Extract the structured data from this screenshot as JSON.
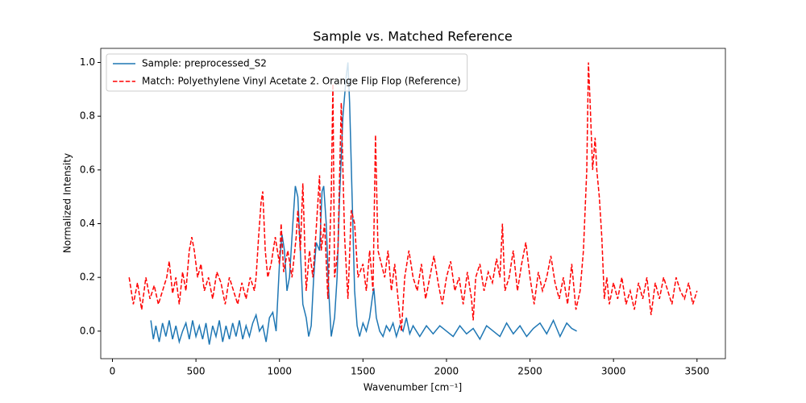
{
  "chart_data": {
    "type": "line",
    "title": "Sample vs. Matched Reference",
    "x_label": "Wavenumber [cm⁻¹]",
    "y_label": "Normalized Intensity",
    "xlim": [
      -70,
      3670
    ],
    "ylim": [
      -0.1025,
      1.0525
    ],
    "xticks": [
      0,
      500,
      1000,
      1500,
      2000,
      2500,
      3000,
      3500
    ],
    "yticks": [
      {
        "value": 0,
        "label": "0.0"
      },
      {
        "value": 0.2,
        "label": "0.2"
      },
      {
        "value": 0.4,
        "label": "0.4"
      },
      {
        "value": 0.6,
        "label": "0.6"
      },
      {
        "value": 0.8,
        "label": "0.8"
      },
      {
        "value": 1,
        "label": "1.0"
      }
    ],
    "legend": "upper left",
    "series": [
      {
        "name": "Sample: preprocessed_S2",
        "color": "#1f77b4",
        "style": "solid",
        "x": [
          230,
          245,
          260,
          280,
          300,
          320,
          340,
          360,
          380,
          400,
          420,
          440,
          460,
          480,
          500,
          520,
          540,
          560,
          580,
          600,
          620,
          640,
          660,
          680,
          700,
          720,
          740,
          760,
          780,
          800,
          820,
          840,
          860,
          880,
          900,
          920,
          940,
          960,
          980,
          1000,
          1015,
          1030,
          1045,
          1060,
          1080,
          1095,
          1110,
          1125,
          1140,
          1160,
          1175,
          1190,
          1205,
          1220,
          1240,
          1255,
          1265,
          1280,
          1295,
          1310,
          1330,
          1345,
          1360,
          1380,
          1400,
          1410,
          1420,
          1435,
          1450,
          1465,
          1480,
          1500,
          1520,
          1540,
          1555,
          1565,
          1580,
          1600,
          1620,
          1640,
          1660,
          1680,
          1700,
          1720,
          1740,
          1760,
          1780,
          1800,
          1840,
          1880,
          1920,
          1960,
          2000,
          2040,
          2080,
          2120,
          2160,
          2200,
          2240,
          2280,
          2320,
          2360,
          2400,
          2440,
          2480,
          2520,
          2560,
          2600,
          2640,
          2680,
          2720,
          2750,
          2780
        ],
        "values": [
          0.04,
          -0.03,
          0.02,
          -0.04,
          0.03,
          -0.02,
          0.04,
          -0.03,
          0.02,
          -0.04,
          0.0,
          0.03,
          -0.03,
          0.04,
          -0.02,
          0.02,
          -0.03,
          0.03,
          -0.05,
          0.02,
          -0.02,
          0.04,
          -0.04,
          0.02,
          -0.03,
          0.03,
          -0.02,
          0.04,
          -0.03,
          0.02,
          -0.02,
          0.03,
          0.06,
          0.0,
          0.02,
          -0.04,
          0.05,
          0.07,
          0.0,
          0.25,
          0.36,
          0.3,
          0.15,
          0.2,
          0.4,
          0.54,
          0.5,
          0.3,
          0.1,
          0.05,
          -0.02,
          0.02,
          0.2,
          0.33,
          0.3,
          0.52,
          0.54,
          0.4,
          0.15,
          -0.02,
          0.05,
          0.2,
          0.5,
          0.8,
          0.95,
          1.0,
          0.85,
          0.5,
          0.15,
          0.02,
          -0.02,
          0.03,
          0.0,
          0.05,
          0.12,
          0.16,
          0.05,
          0.0,
          -0.02,
          0.02,
          0.0,
          0.03,
          -0.02,
          0.02,
          0.0,
          0.05,
          -0.01,
          0.02,
          -0.02,
          0.02,
          -0.01,
          0.02,
          0.0,
          -0.02,
          0.02,
          -0.01,
          0.01,
          -0.03,
          0.02,
          0.0,
          -0.02,
          0.03,
          -0.01,
          0.02,
          -0.02,
          0.01,
          0.03,
          -0.01,
          0.04,
          -0.02,
          0.03,
          0.01,
          0.0
        ]
      },
      {
        "name": "Match: Polyethylene Vinyl Acetate 2. Orange Flip Flop (Reference)",
        "color": "#ff0000",
        "style": "dashed",
        "x": [
          100,
          125,
          150,
          175,
          200,
          225,
          250,
          275,
          300,
          325,
          340,
          360,
          380,
          400,
          420,
          440,
          460,
          475,
          490,
          510,
          530,
          550,
          575,
          600,
          625,
          650,
          675,
          700,
          725,
          750,
          775,
          800,
          825,
          850,
          860,
          875,
          890,
          900,
          915,
          930,
          950,
          975,
          1000,
          1010,
          1025,
          1050,
          1075,
          1100,
          1110,
          1125,
          1140,
          1160,
          1180,
          1200,
          1220,
          1240,
          1250,
          1270,
          1290,
          1310,
          1320,
          1330,
          1350,
          1370,
          1390,
          1410,
          1430,
          1450,
          1470,
          1500,
          1520,
          1540,
          1560,
          1575,
          1590,
          1610,
          1630,
          1650,
          1670,
          1690,
          1710,
          1730,
          1750,
          1775,
          1800,
          1825,
          1850,
          1875,
          1900,
          1925,
          1950,
          1975,
          2000,
          2025,
          2050,
          2075,
          2100,
          2125,
          2150,
          2160,
          2175,
          2200,
          2225,
          2250,
          2275,
          2300,
          2320,
          2335,
          2350,
          2375,
          2400,
          2425,
          2450,
          2475,
          2500,
          2525,
          2550,
          2575,
          2600,
          2625,
          2650,
          2675,
          2700,
          2725,
          2750,
          2775,
          2800,
          2820,
          2840,
          2850,
          2860,
          2875,
          2890,
          2900,
          2915,
          2930,
          2945,
          2960,
          2975,
          3000,
          3025,
          3050,
          3075,
          3100,
          3125,
          3150,
          3175,
          3200,
          3225,
          3250,
          3275,
          3300,
          3325,
          3350,
          3375,
          3400,
          3425,
          3450,
          3475,
          3500
        ],
        "values": [
          0.2,
          0.1,
          0.18,
          0.08,
          0.2,
          0.12,
          0.17,
          0.1,
          0.15,
          0.2,
          0.26,
          0.14,
          0.2,
          0.1,
          0.22,
          0.15,
          0.3,
          0.35,
          0.3,
          0.2,
          0.25,
          0.15,
          0.2,
          0.12,
          0.22,
          0.18,
          0.1,
          0.2,
          0.15,
          0.1,
          0.18,
          0.12,
          0.2,
          0.15,
          0.2,
          0.35,
          0.48,
          0.52,
          0.3,
          0.2,
          0.25,
          0.35,
          0.25,
          0.4,
          0.22,
          0.3,
          0.2,
          0.35,
          0.45,
          0.3,
          0.55,
          0.15,
          0.3,
          0.2,
          0.38,
          0.58,
          0.3,
          0.4,
          0.12,
          0.5,
          0.92,
          0.2,
          0.3,
          0.85,
          0.35,
          0.12,
          0.45,
          0.4,
          0.2,
          0.25,
          0.15,
          0.3,
          0.15,
          0.73,
          0.3,
          0.25,
          0.2,
          0.3,
          0.15,
          0.25,
          0.12,
          0.0,
          0.2,
          0.3,
          0.2,
          0.15,
          0.25,
          0.12,
          0.2,
          0.28,
          0.18,
          0.1,
          0.2,
          0.26,
          0.15,
          0.2,
          0.1,
          0.22,
          0.12,
          0.04,
          0.2,
          0.25,
          0.15,
          0.22,
          0.18,
          0.27,
          0.2,
          0.4,
          0.15,
          0.2,
          0.3,
          0.15,
          0.25,
          0.33,
          0.2,
          0.1,
          0.22,
          0.15,
          0.2,
          0.28,
          0.18,
          0.12,
          0.2,
          0.1,
          0.25,
          0.08,
          0.15,
          0.3,
          0.6,
          1.0,
          0.85,
          0.6,
          0.72,
          0.6,
          0.5,
          0.35,
          0.12,
          0.2,
          0.1,
          0.18,
          0.12,
          0.2,
          0.1,
          0.15,
          0.08,
          0.18,
          0.12,
          0.2,
          0.06,
          0.18,
          0.12,
          0.2,
          0.15,
          0.1,
          0.2,
          0.15,
          0.12,
          0.18,
          0.1,
          0.15
        ]
      }
    ]
  }
}
